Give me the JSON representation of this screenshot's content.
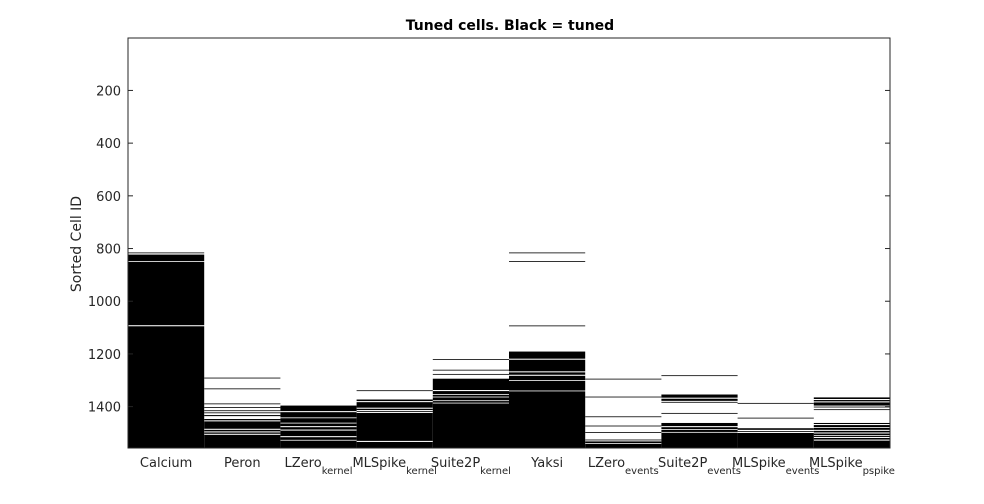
{
  "chart_data": {
    "type": "heatmap",
    "title": "Tuned cells. Black = tuned",
    "ylabel": "Sorted Cell ID",
    "xlabel": "",
    "ylim": [
      1,
      1557
    ],
    "y_reversed": true,
    "yticks": [
      200,
      400,
      600,
      800,
      1000,
      1200,
      1400
    ],
    "colors": {
      "tuned": "#000000",
      "untuned": "#ffffff",
      "axis": "#262626"
    },
    "columns": [
      {
        "label": "Calcium",
        "sub": "",
        "tuned_ranges": [
          [
            815,
            818
          ],
          [
            823,
            848
          ],
          [
            851,
            1091
          ],
          [
            1095,
            1557
          ]
        ]
      },
      {
        "label": "Peron",
        "sub": "",
        "tuned_ranges": [
          [
            1290,
            1292
          ],
          [
            1331,
            1333
          ],
          [
            1388,
            1390
          ],
          [
            1402,
            1404
          ],
          [
            1414,
            1417
          ],
          [
            1422,
            1424
          ],
          [
            1432,
            1436
          ],
          [
            1447,
            1452
          ],
          [
            1456,
            1484
          ],
          [
            1488,
            1494
          ],
          [
            1498,
            1503
          ],
          [
            1507,
            1557
          ]
        ]
      },
      {
        "label": "LZero",
        "sub": "kernel",
        "tuned_ranges": [
          [
            1396,
            1417
          ],
          [
            1421,
            1441
          ],
          [
            1444,
            1461
          ],
          [
            1464,
            1474
          ],
          [
            1478,
            1487
          ],
          [
            1491,
            1512
          ],
          [
            1516,
            1526
          ],
          [
            1529,
            1557
          ]
        ]
      },
      {
        "label": "MLSpike",
        "sub": "kernel",
        "tuned_ranges": [
          [
            1338,
            1340
          ],
          [
            1373,
            1379
          ],
          [
            1383,
            1404
          ],
          [
            1408,
            1413
          ],
          [
            1417,
            1420
          ],
          [
            1424,
            1530
          ],
          [
            1534,
            1557
          ]
        ]
      },
      {
        "label": "Suite2P",
        "sub": "kernel",
        "tuned_ranges": [
          [
            1220,
            1222
          ],
          [
            1260,
            1263
          ],
          [
            1276,
            1278
          ],
          [
            1294,
            1337
          ],
          [
            1341,
            1352
          ],
          [
            1355,
            1362
          ],
          [
            1365,
            1376
          ],
          [
            1379,
            1385
          ],
          [
            1388,
            1557
          ]
        ]
      },
      {
        "label": "Yaksi",
        "sub": "",
        "tuned_ranges": [
          [
            815,
            817
          ],
          [
            848,
            851
          ],
          [
            1092,
            1095
          ],
          [
            1191,
            1218
          ],
          [
            1222,
            1266
          ],
          [
            1270,
            1279
          ],
          [
            1283,
            1299
          ],
          [
            1302,
            1339
          ],
          [
            1342,
            1557
          ]
        ]
      },
      {
        "label": "LZero",
        "sub": "events",
        "tuned_ranges": [
          [
            1294,
            1296
          ],
          [
            1362,
            1364
          ],
          [
            1437,
            1439
          ],
          [
            1472,
            1474
          ],
          [
            1497,
            1499
          ],
          [
            1525,
            1527
          ],
          [
            1532,
            1538
          ],
          [
            1541,
            1557
          ]
        ]
      },
      {
        "label": "Suite2P",
        "sub": "events",
        "tuned_ranges": [
          [
            1281,
            1283
          ],
          [
            1354,
            1366
          ],
          [
            1370,
            1378
          ],
          [
            1382,
            1384
          ],
          [
            1424,
            1426
          ],
          [
            1462,
            1474
          ],
          [
            1478,
            1485
          ],
          [
            1488,
            1496
          ],
          [
            1499,
            1557
          ]
        ]
      },
      {
        "label": "MLSpike",
        "sub": "events",
        "tuned_ranges": [
          [
            1386,
            1388
          ],
          [
            1442,
            1444
          ],
          [
            1482,
            1488
          ],
          [
            1493,
            1496
          ],
          [
            1500,
            1557
          ]
        ]
      },
      {
        "label": "MLSpike",
        "sub": "pspike",
        "tuned_ranges": [
          [
            1365,
            1371
          ],
          [
            1375,
            1380
          ],
          [
            1384,
            1396
          ],
          [
            1400,
            1403
          ],
          [
            1410,
            1412
          ],
          [
            1462,
            1466
          ],
          [
            1470,
            1478
          ],
          [
            1481,
            1488
          ],
          [
            1492,
            1498
          ],
          [
            1502,
            1508
          ],
          [
            1511,
            1515
          ],
          [
            1519,
            1525
          ],
          [
            1529,
            1557
          ]
        ]
      }
    ]
  }
}
